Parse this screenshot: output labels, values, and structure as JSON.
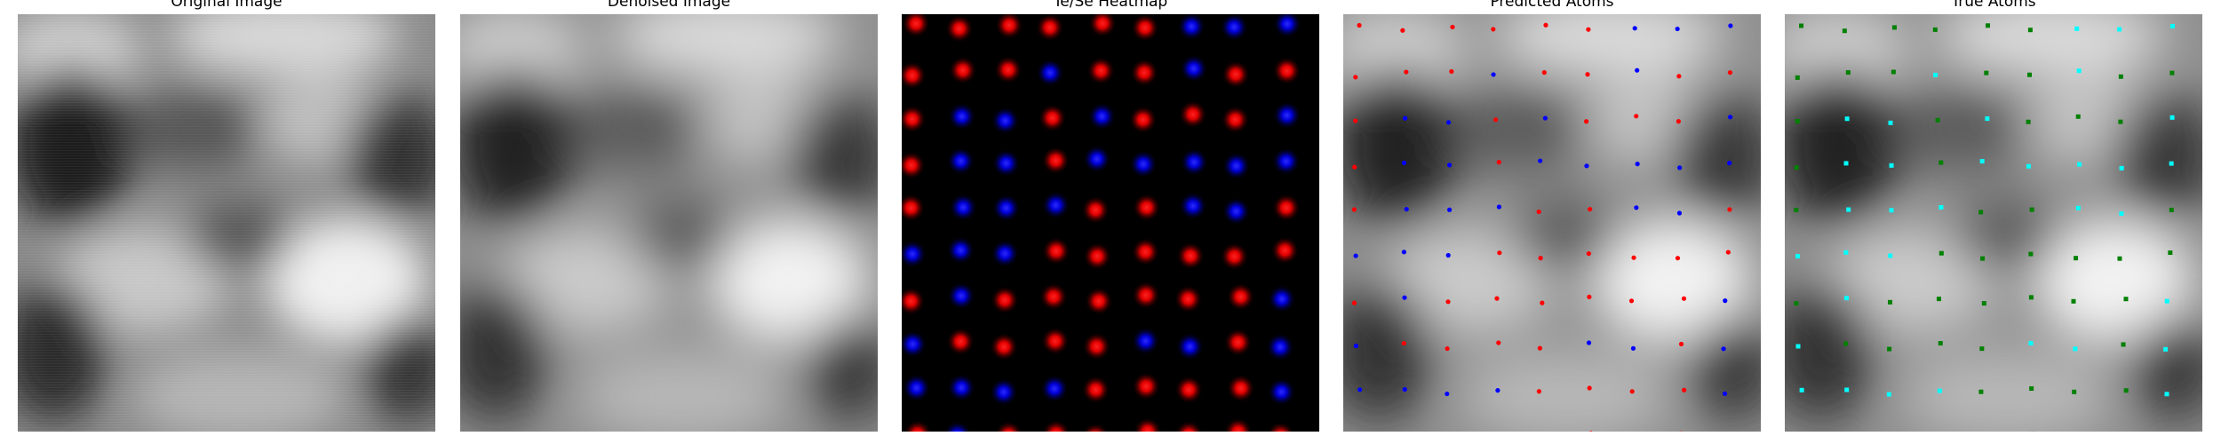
{
  "panels": {
    "original": {
      "title": "Original Image"
    },
    "denoised": {
      "title": "Denoised Image"
    },
    "heatmap": {
      "title": "Te/Se Heatmap"
    },
    "predicted": {
      "title": "Predicted Atoms"
    },
    "true_atoms": {
      "title": "True Atoms"
    }
  },
  "colors": {
    "te_red": "#ff0000",
    "se_blue": "#0000ff",
    "true_green": "#008000",
    "true_cyan": "#00ffff",
    "heatmap_background": "#000000"
  }
}
